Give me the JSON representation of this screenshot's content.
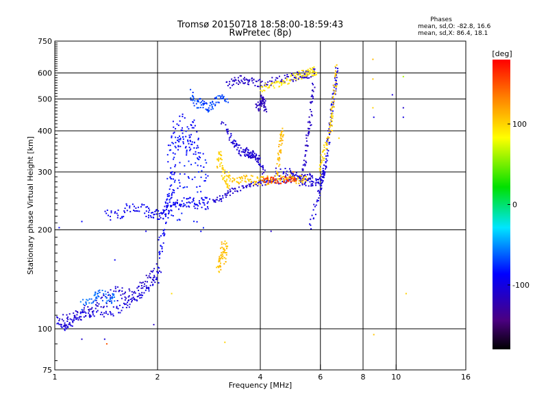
{
  "chart_data": {
    "type": "scatter",
    "title": "Tromsø 20150718 18:58:00-18:59:43",
    "subtitle": "RwPretec (8p)",
    "xlabel": "Frequency [MHz]",
    "ylabel": "Stationary phase Virtual Height [km]",
    "x_scale": "log2",
    "y_scale": "log",
    "xlim": [
      1,
      16
    ],
    "ylim": [
      75,
      750
    ],
    "x_ticks": [
      1,
      2,
      4,
      6,
      8,
      10,
      16
    ],
    "x_tick_labels": [
      "1",
      "2",
      "4",
      "6",
      "8",
      "10",
      "16"
    ],
    "x_grid_lines": [
      2,
      4,
      6,
      8,
      10
    ],
    "y_ticks": [
      75,
      100,
      200,
      300,
      400,
      500,
      600,
      750
    ],
    "y_tick_labels": [
      "75",
      "100",
      "200",
      "300",
      "400",
      "500",
      "600",
      "750"
    ],
    "y_grid_lines": [
      100,
      200,
      300,
      400,
      500,
      600
    ],
    "grid": true,
    "stats": {
      "heading": "Phases",
      "line_o": "mean, sd,O: -82.8, 16.6",
      "line_x": "mean, sd,X: 86.4, 18.1"
    },
    "colorbar": {
      "label": "[deg]",
      "range": [
        -180,
        180
      ],
      "ticks": [
        100,
        0,
        -100
      ],
      "tick_labels": [
        "100",
        "0",
        "-100"
      ],
      "colormap": "rainbow (black-purple-blue-cyan-green-yellow-orange-red)"
    },
    "traces": [
      {
        "x": [
          1.0,
          1.06,
          1.12,
          1.2,
          1.3,
          1.45,
          1.6,
          1.75,
          1.9,
          2.05
        ],
        "y": [
          108,
          101,
          104,
          111,
          112,
          112,
          117,
          124,
          135,
          148
        ],
        "phase": -100,
        "spread": 0.03
      },
      {
        "x": [
          1.05,
          1.1,
          1.2,
          1.3,
          1.4,
          1.5,
          1.6,
          1.7,
          1.8,
          1.9,
          2.0
        ],
        "y": [
          107,
          107,
          110,
          117,
          122,
          128,
          128,
          126,
          135,
          142,
          155
        ],
        "phase": -108,
        "spread": 0.05
      },
      {
        "x": [
          1.2,
          1.3,
          1.35,
          1.45,
          1.5
        ],
        "y": [
          118,
          124,
          128,
          122,
          126
        ],
        "phase": -60,
        "spread": 0.04
      },
      {
        "x": [
          2.0,
          2.05,
          2.1,
          2.15,
          2.2,
          2.25
        ],
        "y": [
          150,
          180,
          215,
          240,
          270,
          300
        ],
        "phase": -88,
        "spread": 0.12
      },
      {
        "x": [
          2.15,
          2.2,
          2.3,
          2.4,
          2.5,
          2.6,
          2.7,
          2.8
        ],
        "y": [
          330,
          300,
          290,
          310,
          300,
          290,
          270,
          260
        ],
        "phase": -82,
        "spread": 0.28
      },
      {
        "x": [
          2.2,
          2.3,
          2.35,
          2.45,
          2.55,
          2.65
        ],
        "y": [
          400,
          380,
          420,
          370,
          400,
          360
        ],
        "phase": -86,
        "spread": 0.1
      },
      {
        "x": [
          1.4,
          1.55,
          1.7,
          1.85,
          1.95,
          2.05,
          2.15,
          2.25,
          2.4,
          2.55,
          2.7,
          2.85
        ],
        "y": [
          220,
          225,
          235,
          228,
          222,
          225,
          230,
          238,
          245,
          240,
          242,
          240
        ],
        "phase": -92,
        "spread": 0.04
      },
      {
        "x": [
          2.5,
          2.6,
          2.7,
          2.8,
          2.9,
          3.05,
          3.2
        ],
        "y": [
          520,
          480,
          490,
          470,
          480,
          500,
          500
        ],
        "phase": -70,
        "spread": 0.03
      },
      {
        "x": [
          2.9,
          3.1,
          3.3,
          3.6,
          3.9,
          4.2,
          4.6,
          5.0,
          5.4,
          5.7
        ],
        "y": [
          245,
          250,
          262,
          270,
          275,
          280,
          282,
          285,
          288,
          292
        ],
        "phase": -108,
        "spread": 0.02
      },
      {
        "x": [
          3.2,
          3.4,
          3.6,
          3.8,
          4.1,
          4.5,
          4.9,
          5.2,
          5.4,
          5.6
        ],
        "y": [
          550,
          570,
          575,
          560,
          560,
          570,
          580,
          590,
          595,
          590
        ],
        "phase": -112,
        "spread": 0.03
      },
      {
        "x": [
          3.6,
          3.8,
          3.9,
          4.0,
          4.1
        ],
        "y": [
          350,
          340,
          330,
          320,
          300
        ],
        "phase": -110,
        "spread": 0.03
      },
      {
        "x": [
          3.1,
          3.3,
          3.4,
          3.5,
          3.7,
          3.8
        ],
        "y": [
          420,
          380,
          360,
          345,
          340,
          335
        ],
        "phase": -105,
        "spread": 0.03
      },
      {
        "x": [
          3.9,
          4.0,
          4.05,
          4.1,
          4.15
        ],
        "y": [
          470,
          480,
          500,
          485,
          470
        ],
        "phase": -118,
        "spread": 0.03
      },
      {
        "x": [
          5.25,
          5.4,
          5.5,
          5.6,
          5.7,
          5.75
        ],
        "y": [
          280,
          320,
          380,
          430,
          520,
          620
        ],
        "phase": -112,
        "spread": 0.03
      },
      {
        "x": [
          4.4,
          4.8,
          5.1,
          5.4,
          5.6,
          5.9,
          6.1,
          6.2
        ],
        "y": [
          300,
          300,
          290,
          280,
          280,
          282,
          290,
          310
        ],
        "phase": -105,
        "spread": 0.03
      },
      {
        "x": [
          5.6,
          5.9,
          6.1,
          6.25,
          6.35,
          6.45,
          6.55,
          6.65,
          6.7
        ],
        "y": [
          200,
          250,
          280,
          320,
          380,
          440,
          500,
          560,
          620
        ],
        "phase": -100,
        "spread": 0.03
      },
      {
        "x": [
          3.0,
          3.05,
          3.1,
          3.2,
          3.25
        ],
        "y": [
          320,
          340,
          300,
          280,
          290
        ],
        "phase": 100,
        "spread": 0.05
      },
      {
        "x": [
          3.3,
          3.5,
          3.7,
          3.9,
          4.1,
          4.3,
          4.6,
          4.9,
          5.2,
          5.5
        ],
        "y": [
          280,
          284,
          285,
          282,
          282,
          285,
          290,
          286,
          285,
          286
        ],
        "phase": 105,
        "spread": 0.03
      },
      {
        "x": [
          4.5,
          4.55,
          4.6,
          4.65
        ],
        "y": [
          300,
          340,
          380,
          400
        ],
        "phase": 110,
        "spread": 0.04
      },
      {
        "x": [
          4.0,
          4.3,
          4.6,
          4.9,
          5.2,
          5.5,
          5.7,
          5.8
        ],
        "y": [
          540,
          545,
          560,
          575,
          590,
          600,
          605,
          610
        ],
        "phase": 90,
        "spread": 0.03
      },
      {
        "x": [
          6.0,
          6.1,
          6.25,
          6.4,
          6.5,
          6.6,
          6.7
        ],
        "y": [
          300,
          330,
          360,
          410,
          460,
          530,
          620
        ],
        "phase": 100,
        "spread": 0.04
      },
      {
        "x": [
          3.0,
          3.05,
          3.1,
          3.15,
          3.2
        ],
        "y": [
          160,
          155,
          175,
          165,
          185
        ],
        "phase": 108,
        "spread": 0.06
      },
      {
        "x": [
          4.1,
          4.3,
          4.6,
          4.9,
          5.1
        ],
        "y": [
          282,
          284,
          282,
          286,
          285
        ],
        "phase": 160,
        "spread": 0.02
      }
    ],
    "isolated": [
      {
        "x": 1.03,
        "y": 203,
        "phase": -85
      },
      {
        "x": 1.2,
        "y": 93,
        "phase": -110
      },
      {
        "x": 1.4,
        "y": 93,
        "phase": -105
      },
      {
        "x": 1.42,
        "y": 90,
        "phase": 150
      },
      {
        "x": 1.2,
        "y": 212,
        "phase": -85
      },
      {
        "x": 1.5,
        "y": 162,
        "phase": -90
      },
      {
        "x": 1.85,
        "y": 198,
        "phase": -95
      },
      {
        "x": 1.95,
        "y": 103,
        "phase": -115
      },
      {
        "x": 2.2,
        "y": 128,
        "phase": 95
      },
      {
        "x": 3.15,
        "y": 91,
        "phase": 100
      },
      {
        "x": 4.3,
        "y": 198,
        "phase": -110
      },
      {
        "x": 5.9,
        "y": 262,
        "phase": -110
      },
      {
        "x": 8.55,
        "y": 660,
        "phase": 110
      },
      {
        "x": 8.55,
        "y": 575,
        "phase": 105
      },
      {
        "x": 8.55,
        "y": 470,
        "phase": 100
      },
      {
        "x": 8.6,
        "y": 440,
        "phase": -100
      },
      {
        "x": 8.6,
        "y": 96,
        "phase": 105
      },
      {
        "x": 9.75,
        "y": 515,
        "phase": -105
      },
      {
        "x": 10.5,
        "y": 585,
        "phase": 60
      },
      {
        "x": 10.5,
        "y": 470,
        "phase": -110
      },
      {
        "x": 10.5,
        "y": 440,
        "phase": -100
      },
      {
        "x": 10.7,
        "y": 128,
        "phase": 100
      },
      {
        "x": 6.5,
        "y": 400,
        "phase": 110
      },
      {
        "x": 6.8,
        "y": 380,
        "phase": 100
      },
      {
        "x": 5.0,
        "y": 300,
        "phase": 150
      }
    ]
  }
}
